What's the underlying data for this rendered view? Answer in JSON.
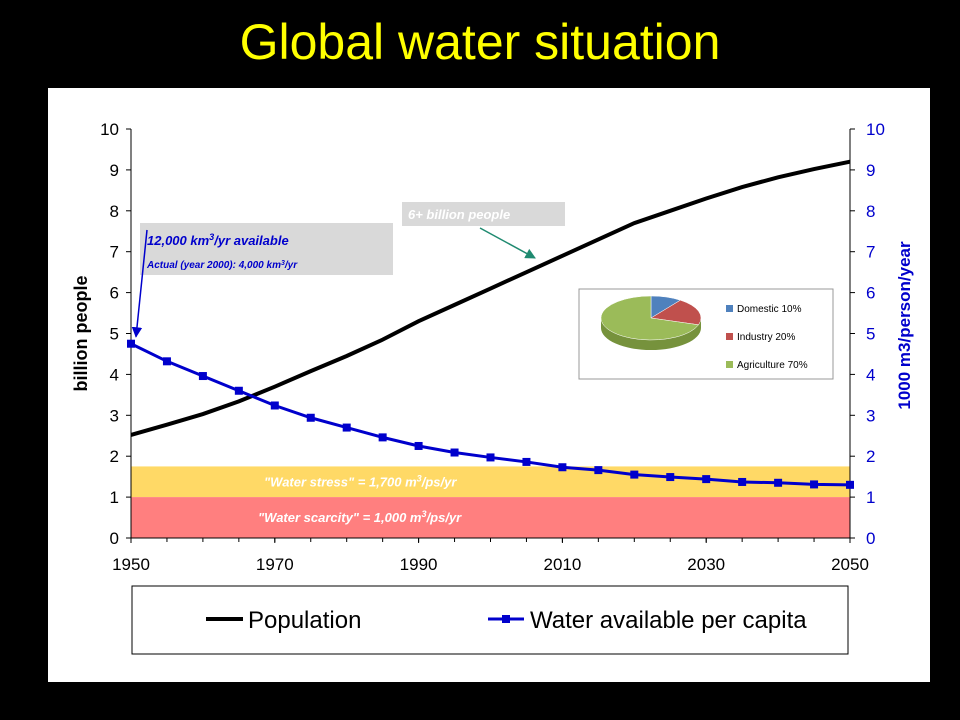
{
  "slide": {
    "title": "Global water situation"
  },
  "chart_data": {
    "type": "line",
    "x_ticks": [
      "1950",
      "1970",
      "1990",
      "2010",
      "2030",
      "2050"
    ],
    "xlim": [
      1950,
      2050
    ],
    "ylabel_left": "billion people",
    "ylabel_right": "1000 m3/person/year",
    "ylim_left": [
      0,
      10
    ],
    "ylim_right": [
      0,
      10
    ],
    "y_ticks_left": [
      "0",
      "1",
      "2",
      "3",
      "4",
      "5",
      "6",
      "7",
      "8",
      "9",
      "10"
    ],
    "y_ticks_right": [
      "0",
      "1",
      "2",
      "3",
      "4",
      "5",
      "6",
      "7",
      "8",
      "9",
      "10"
    ],
    "grid": false,
    "legend_position": "bottom",
    "colors": {
      "population": "#000000",
      "water": "#0000cc",
      "stress": "#ffd966",
      "scarcity": "#ff7f7f",
      "annotation_box": "#d9d9d9"
    },
    "series": [
      {
        "name": "Population",
        "axis": "left",
        "x": [
          1950,
          1955,
          1960,
          1965,
          1970,
          1975,
          1980,
          1985,
          1990,
          1995,
          2000,
          2005,
          2010,
          2015,
          2020,
          2025,
          2030,
          2035,
          2040,
          2045,
          2050
        ],
        "values": [
          2.52,
          2.77,
          3.03,
          3.34,
          3.7,
          4.08,
          4.45,
          4.85,
          5.3,
          5.7,
          6.1,
          6.5,
          6.9,
          7.3,
          7.7,
          8.0,
          8.3,
          8.58,
          8.82,
          9.02,
          9.2
        ]
      },
      {
        "name": "Water available per capita",
        "axis": "right",
        "x": [
          1950,
          1955,
          1960,
          1965,
          1970,
          1975,
          1980,
          1985,
          1990,
          1995,
          2000,
          2005,
          2010,
          2015,
          2020,
          2025,
          2030,
          2035,
          2040,
          2045,
          2050
        ],
        "values": [
          4.75,
          4.32,
          3.96,
          3.6,
          3.24,
          2.94,
          2.7,
          2.46,
          2.25,
          2.09,
          1.97,
          1.86,
          1.73,
          1.66,
          1.55,
          1.49,
          1.44,
          1.37,
          1.35,
          1.31,
          1.3
        ]
      }
    ],
    "bands": [
      {
        "label": "\"Water stress\" = 1,700 m3/ps/yr",
        "from": 1.0,
        "to": 1.75
      },
      {
        "label": "\"Water scarcity\" = 1,000 m3/ps/yr",
        "from": 0.0,
        "to": 1.0
      }
    ],
    "annotations": [
      {
        "line1": "12,000 km3/yr available",
        "line2": "Actual (year 2000): 4,000 km3/yr"
      },
      {
        "text": "6+ billion people"
      }
    ],
    "inset_pie": {
      "slices": [
        {
          "label": "Domestic 10%",
          "value": 10,
          "color": "#4f81bd"
        },
        {
          "label": "Industry 20%",
          "value": 20,
          "color": "#c0504d"
        },
        {
          "label": "Agriculture 70%",
          "value": 70,
          "color": "#9bbb59"
        }
      ]
    }
  }
}
